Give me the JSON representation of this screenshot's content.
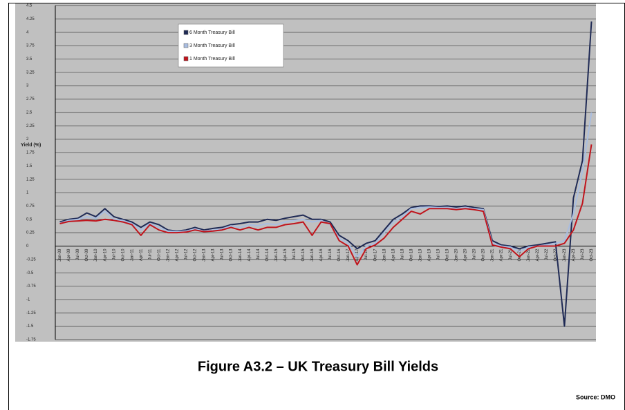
{
  "chart_data": {
    "type": "line",
    "title": "Figure A3.2 – UK Treasury Bill Yields",
    "source": "Source: DMO",
    "y_label": "Yield (%)",
    "categories": [
      "Jan-09",
      "Apr-09",
      "Jul-09",
      "Oct-09",
      "Jan-10",
      "Apr-10",
      "Jul-10",
      "Oct-10",
      "Jan-11",
      "Apr-11",
      "Jul-11",
      "Oct-11",
      "Jan-12",
      "Apr-12",
      "Jul-12",
      "Oct-12",
      "Jan-13",
      "Apr-13",
      "Jul-13",
      "Oct-13",
      "Jan-14",
      "Apr-14",
      "Jul-14",
      "Oct-14",
      "Jan-15",
      "Apr-15",
      "Jul-15",
      "Oct-15",
      "Jan-16",
      "Apr-16",
      "Jul-16",
      "Oct-16",
      "Jan-17",
      "Apr-17",
      "Jul-17",
      "Oct-17",
      "Jan-18",
      "Apr-18",
      "Jul-18",
      "Oct-18",
      "Jan-19",
      "Apr-19",
      "Jul-19",
      "Oct-19",
      "Jan-20",
      "Apr-20",
      "Jul-20",
      "Oct-20",
      "Jan-21",
      "Apr-21",
      "Jul-21",
      "Oct-21",
      "Jan-22",
      "Apr-22",
      "Jul-22",
      "Oct-22",
      "Jan-23",
      "Apr-23",
      "Jul-23",
      "Oct-23"
    ],
    "series": [
      {
        "name": "6 Month Treasury Bill",
        "color": "#1f2a55",
        "values": [
          0.45,
          0.5,
          0.52,
          0.62,
          0.55,
          0.7,
          0.55,
          0.5,
          0.45,
          0.35,
          0.45,
          0.4,
          0.3,
          0.28,
          0.3,
          0.35,
          0.3,
          0.33,
          0.35,
          0.4,
          0.42,
          0.45,
          0.45,
          0.5,
          0.48,
          0.52,
          0.55,
          0.58,
          0.5,
          0.5,
          0.45,
          0.2,
          0.1,
          -0.05,
          0.05,
          0.1,
          0.3,
          0.5,
          0.6,
          0.72,
          0.75,
          0.75,
          0.74,
          0.75,
          0.73,
          0.75,
          0.72,
          0.7,
          0.1,
          0.02,
          0,
          -0.05,
          0,
          0.02,
          0.05,
          0.08,
          -1.5,
          0.9,
          1.6,
          4.2
        ]
      },
      {
        "name": "3 Month Treasury Bill",
        "color": "#a9bde0",
        "values": [
          0.43,
          0.48,
          0.5,
          0.55,
          0.52,
          0.65,
          0.5,
          0.48,
          0.42,
          0.3,
          0.42,
          0.35,
          0.28,
          0.27,
          0.28,
          0.32,
          0.28,
          0.3,
          0.32,
          0.38,
          0.35,
          0.4,
          0.38,
          0.42,
          0.4,
          0.45,
          0.48,
          0.5,
          0.45,
          0.48,
          0.4,
          0.15,
          0.05,
          -0.2,
          0,
          0.05,
          0.25,
          0.45,
          0.55,
          0.7,
          0.72,
          0.73,
          0.72,
          0.72,
          0.7,
          0.72,
          0.7,
          0.68,
          0.05,
          0,
          -0.02,
          -0.1,
          -0.02,
          0,
          0.02,
          0.05,
          0.1,
          0.6,
          1.4,
          2.5
        ]
      },
      {
        "name": "1 Month Treasury Bill",
        "color": "#c0141c",
        "values": [
          0.42,
          0.46,
          0.47,
          0.48,
          0.47,
          0.5,
          0.48,
          0.45,
          0.4,
          0.2,
          0.4,
          0.3,
          0.25,
          0.25,
          0.26,
          0.3,
          0.27,
          0.28,
          0.3,
          0.35,
          0.3,
          0.35,
          0.3,
          0.35,
          0.35,
          0.4,
          0.42,
          0.45,
          0.2,
          0.45,
          0.42,
          0.1,
          0,
          -0.35,
          -0.05,
          0.02,
          0.15,
          0.35,
          0.5,
          0.65,
          0.6,
          0.7,
          0.7,
          0.7,
          0.68,
          0.7,
          0.68,
          0.65,
          0.02,
          -0.02,
          -0.05,
          -0.2,
          -0.05,
          0,
          0,
          0,
          0.05,
          0.3,
          0.8,
          1.9
        ]
      }
    ],
    "ylim": [
      -1.75,
      4.5
    ],
    "yticks": [
      -1.75,
      -1.5,
      -1.25,
      -1,
      -0.75,
      -0.5,
      -0.25,
      0,
      0.25,
      0.5,
      0.75,
      1,
      1.25,
      1.5,
      1.75,
      2,
      2.25,
      2.5,
      2.75,
      3,
      3.25,
      3.5,
      3.75,
      4,
      4.25,
      4.5
    ],
    "grid": true,
    "legend": "upper-left"
  }
}
